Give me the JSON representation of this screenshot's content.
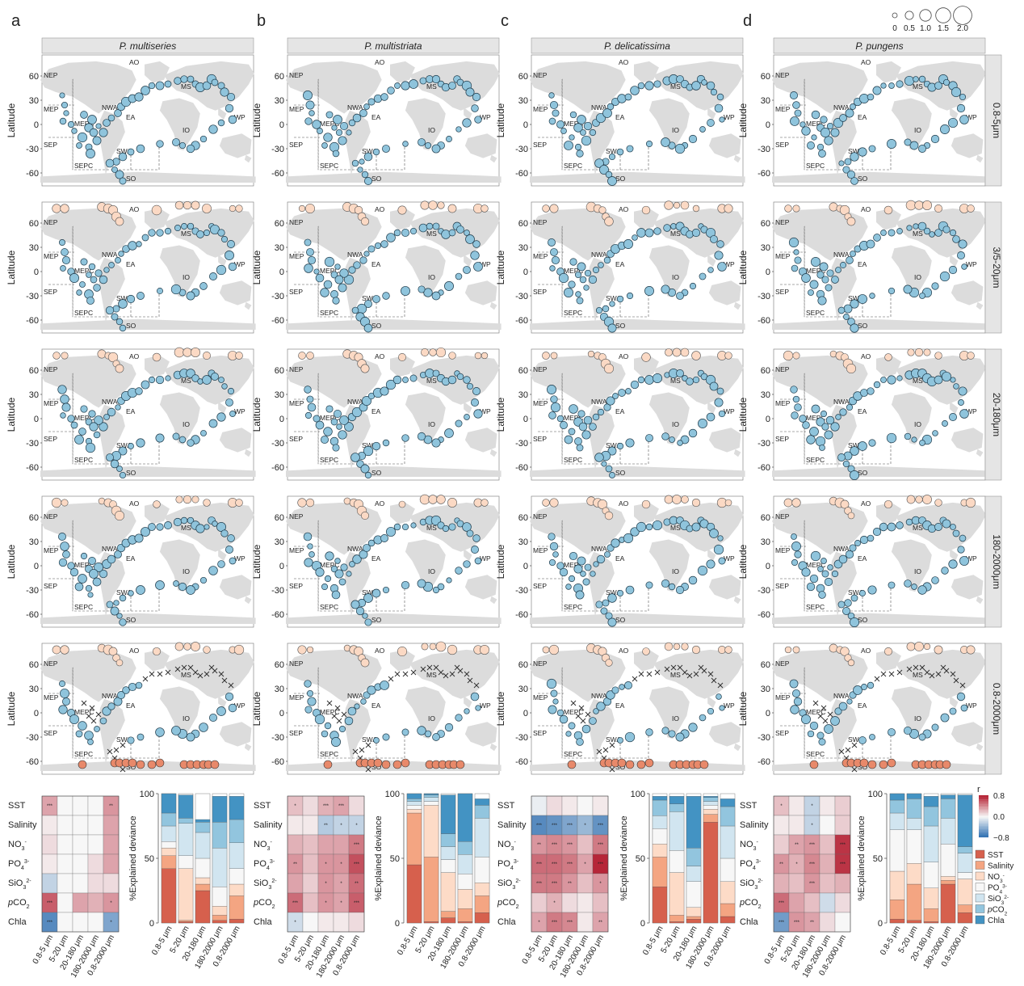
{
  "panel_letters": [
    "a",
    "b",
    "c",
    "d"
  ],
  "species": [
    "P. multiseries",
    "P. multistriata",
    "P. delicatissima",
    "P. pungens"
  ],
  "size_fractions": [
    "0.8-5μm",
    "3/5-20μm",
    "20-180μm",
    "180-2000μm",
    "0.8-2000μm"
  ],
  "map_axis": {
    "ylabel": "Latitude",
    "ticks": [
      "60",
      "30",
      "0",
      "-30",
      "-60"
    ],
    "tick_values": [
      60,
      30,
      0,
      -30,
      -60
    ]
  },
  "regions": [
    "AO",
    "NEP",
    "MEP",
    "MEPC",
    "NWA",
    "MS",
    "EA",
    "IO",
    "WP",
    "SEP",
    "SWA",
    "SEPC",
    "SO"
  ],
  "size_legend": {
    "labels": [
      "0",
      "0.5",
      "1.0",
      "1.5",
      "2.0"
    ],
    "values": [
      0,
      0.5,
      1.0,
      1.5,
      2.0
    ]
  },
  "colors": {
    "land": "#dcdcdc",
    "point_blue": "#8fc4dc",
    "point_pale": "#fbd9c4",
    "point_orange": "#e8896a",
    "strip": "#e5e5e5"
  },
  "heatmap": {
    "rows": [
      "SST",
      "Salinity",
      "NO3-",
      "PO43-",
      "SiO32-",
      "pCO2",
      "Chla"
    ],
    "cols": [
      "0.8-5 μm",
      "5-20 μm",
      "20-180 μm",
      "180-2000 μm",
      "0.8-2000 μm"
    ],
    "r_legend": {
      "title": "r",
      "ticks": [
        "0.8",
        "0.0",
        "−0.8"
      ]
    },
    "panels": [
      {
        "values": [
          [
            0.3,
            0,
            0,
            0,
            0.35
          ],
          [
            0.05,
            0,
            0,
            0,
            0.3
          ],
          [
            0.1,
            0,
            0,
            0,
            0.3
          ],
          [
            0.05,
            0,
            0,
            0.1,
            0.3
          ],
          [
            -0.2,
            0,
            0,
            0.1,
            0.1
          ],
          [
            0.55,
            0,
            0.3,
            0.25,
            0.35
          ],
          [
            -0.6,
            0,
            0,
            0,
            -0.45
          ]
        ],
        "sig": [
          [
            "***",
            "",
            "",
            "",
            "**"
          ],
          [
            "",
            "",
            "",
            "",
            ""
          ],
          [
            "",
            "",
            "",
            "",
            ""
          ],
          [
            "",
            "",
            "",
            "",
            ""
          ],
          [
            "",
            "",
            "",
            "",
            ""
          ],
          [
            "***",
            "",
            "",
            "",
            "*"
          ],
          [
            "***",
            "",
            "",
            "",
            "*"
          ]
        ]
      },
      {
        "values": [
          [
            0.2,
            0.1,
            0.25,
            0.3,
            0.1
          ],
          [
            0.05,
            0.05,
            -0.25,
            -0.2,
            -0.2
          ],
          [
            0.25,
            0.2,
            0.3,
            0.3,
            0.45
          ],
          [
            0.35,
            0.2,
            0.35,
            0.35,
            0.6
          ],
          [
            0.3,
            0.15,
            0.35,
            0.3,
            0.5
          ],
          [
            0.5,
            0.2,
            0.35,
            0.3,
            0.55
          ],
          [
            -0.15,
            0,
            0.05,
            0.05,
            0.1
          ]
        ],
        "sig": [
          [
            "*",
            "",
            "***",
            "***",
            ""
          ],
          [
            "",
            "",
            "**",
            "*",
            "*"
          ],
          [
            "",
            "",
            "",
            "",
            "***"
          ],
          [
            "**",
            "",
            "*",
            "*",
            "***"
          ],
          [
            "",
            "",
            "*",
            "*",
            "**"
          ],
          [
            "***",
            "",
            "*",
            "*",
            "***"
          ],
          [
            "*",
            "",
            "",
            "",
            ""
          ]
        ]
      },
      {
        "values": [
          [
            -0.05,
            0.1,
            0.05,
            0,
            0.05
          ],
          [
            -0.6,
            -0.55,
            -0.45,
            -0.35,
            -0.55
          ],
          [
            0.35,
            0.4,
            0.35,
            0.2,
            0.45
          ],
          [
            0.5,
            0.5,
            0.45,
            0.3,
            0.75
          ],
          [
            0.45,
            0.45,
            0.35,
            0.2,
            0.35
          ],
          [
            0.15,
            0.25,
            0.1,
            0.05,
            0.2
          ],
          [
            0.3,
            0.45,
            0.4,
            0.05,
            0.3
          ]
        ],
        "sig": [
          [
            "",
            "",
            "",
            "",
            ""
          ],
          [
            "***",
            "***",
            "***",
            "*",
            "***"
          ],
          [
            "**",
            "***",
            "***",
            "",
            "***"
          ],
          [
            "***",
            "***",
            "***",
            "*",
            "***"
          ],
          [
            "***",
            "***",
            "**",
            "",
            "*"
          ],
          [
            "",
            "*",
            "",
            "",
            ""
          ],
          [
            "*",
            "***",
            "***",
            "",
            "**"
          ]
        ]
      },
      {
        "values": [
          [
            0.2,
            0.05,
            -0.2,
            0.05,
            0.15
          ],
          [
            0.05,
            0.05,
            -0.2,
            0,
            0.15
          ],
          [
            0.15,
            0.3,
            0.35,
            0.2,
            0.7
          ],
          [
            0.35,
            0.25,
            0.4,
            0.25,
            0.7
          ],
          [
            0.25,
            0.2,
            0.35,
            0.2,
            0.25
          ],
          [
            0.5,
            0.3,
            0.2,
            -0.15,
            0.1
          ],
          [
            -0.5,
            0.35,
            0.3,
            0.1,
            0
          ]
        ],
        "sig": [
          [
            "*",
            "",
            "*",
            "",
            ""
          ],
          [
            "",
            "",
            "*",
            "",
            ""
          ],
          [
            "",
            "**",
            "***",
            "",
            "***"
          ],
          [
            "**",
            "*",
            "***",
            "",
            "***"
          ],
          [
            "",
            "",
            "***",
            "",
            ""
          ],
          [
            "***",
            "",
            "",
            "",
            ""
          ],
          [
            "***",
            "***",
            "**",
            "",
            ""
          ]
        ]
      }
    ]
  },
  "deviance": {
    "ylabel": "%Explained deviance",
    "yticks": [
      "100",
      "50",
      "0"
    ],
    "ytick_values": [
      100,
      50,
      0
    ],
    "cols": [
      "0.8-5 μm",
      "5-20 μm",
      "20-180 μm",
      "180-2000 μm",
      "0.8-2000 μm"
    ],
    "order_bottom_up": [
      "Chla",
      "pCO2",
      "SiO32-",
      "PO43-",
      "NO3-",
      "Salinity",
      "SST"
    ],
    "legend": [
      "SST",
      "Salinity",
      "NO3-",
      "PO43-",
      "SiO32-",
      "pCO2",
      "Chla"
    ],
    "colors": [
      "#d6604d",
      "#f4a582",
      "#fddbc7",
      "#f7f7f7",
      "#d1e5f0",
      "#92c5de",
      "#4393c3"
    ],
    "panels": [
      [
        [
          42,
          10,
          6,
          5,
          12,
          10,
          15
        ],
        [
          1,
          1,
          40,
          10,
          25,
          4,
          18
        ],
        [
          25,
          5,
          5,
          15,
          20,
          8,
          2
        ],
        [
          2,
          4,
          7,
          15,
          30,
          20,
          20
        ],
        [
          3,
          18,
          9,
          12,
          20,
          18,
          18
        ]
      ],
      [
        [
          45,
          40,
          3,
          3,
          3,
          2,
          4
        ],
        [
          1,
          50,
          40,
          3,
          3,
          2,
          1
        ],
        [
          4,
          5,
          30,
          10,
          10,
          10,
          30
        ],
        [
          1,
          10,
          15,
          12,
          15,
          10,
          37
        ],
        [
          8,
          13,
          10,
          20,
          30,
          10,
          5
        ]
      ],
      [
        [
          28,
          23,
          10,
          12,
          10,
          12,
          3
        ],
        [
          1,
          5,
          33,
          17,
          30,
          6,
          6
        ],
        [
          3,
          2,
          7,
          20,
          12,
          14,
          40
        ],
        [
          78,
          6,
          4,
          3,
          3,
          3,
          1
        ],
        [
          5,
          10,
          17,
          18,
          25,
          15,
          6
        ]
      ],
      [
        [
          3,
          15,
          22,
          32,
          13,
          10,
          5
        ],
        [
          2,
          28,
          16,
          26,
          9,
          15,
          4
        ],
        [
          1,
          10,
          16,
          20,
          28,
          15,
          8
        ],
        [
          30,
          3,
          3,
          25,
          20,
          15,
          3
        ],
        [
          8,
          6,
          20,
          5,
          15,
          5,
          40
        ]
      ]
    ]
  }
}
